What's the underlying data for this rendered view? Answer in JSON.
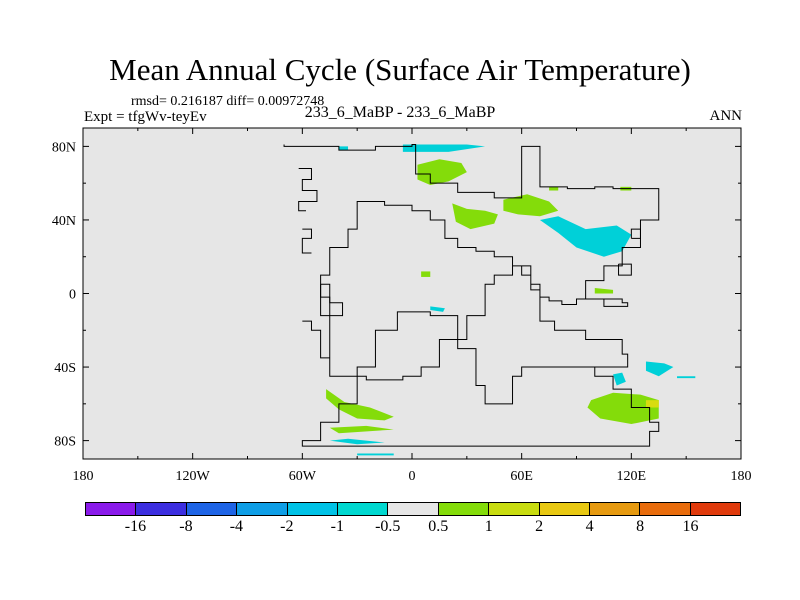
{
  "title": "Mean Annual Cycle (Surface Air Temperature)",
  "stats_line": "rmsd= 0.216187 diff= 0.00972748",
  "expt_line": "Expt = tfgWv-teyEv",
  "center_label": "233_6_MaBP - 233_6_MaBP",
  "season_label": "ANN",
  "colors": {
    "background": "#e6e6e6",
    "outline": "#000000",
    "neg_small": "#00d0d8",
    "pos_small": "#84dc0a",
    "pos_medium": "#d8dc10"
  },
  "chart_data": {
    "type": "heatmap",
    "title": "Mean Annual Cycle (Surface Air Temperature)",
    "xlabel": "",
    "ylabel": "",
    "xlim": [
      -180,
      180
    ],
    "ylim": [
      -90,
      90
    ],
    "x_ticks": [
      {
        "value": -180,
        "label": "180"
      },
      {
        "value": -120,
        "label": "120W"
      },
      {
        "value": -60,
        "label": "60W"
      },
      {
        "value": 0,
        "label": "0"
      },
      {
        "value": 60,
        "label": "60E"
      },
      {
        "value": 120,
        "label": "120E"
      },
      {
        "value": 180,
        "label": "180"
      }
    ],
    "y_ticks": [
      {
        "value": 80,
        "label": "80N"
      },
      {
        "value": 40,
        "label": "40N"
      },
      {
        "value": 0,
        "label": "0"
      },
      {
        "value": -40,
        "label": "40S"
      },
      {
        "value": -80,
        "label": "80S"
      }
    ],
    "colorbar": {
      "colors": [
        "#8a1aea",
        "#3c2ee0",
        "#1e64e6",
        "#0e9ee6",
        "#00c2e6",
        "#00d8d0",
        "#e6e6e6",
        "#84dc0a",
        "#c8dc10",
        "#e8c812",
        "#e69a10",
        "#e86c0c",
        "#e03a0c"
      ],
      "labels": [
        "-16",
        "-8",
        "-4",
        "-2",
        "-1",
        "-0.5",
        "0.5",
        "1",
        "2",
        "4",
        "8",
        "16"
      ]
    },
    "continent_outline": [
      [
        -70,
        81
      ],
      [
        -70,
        80
      ],
      [
        -40,
        80
      ],
      [
        -40,
        78
      ],
      [
        -20,
        78
      ],
      [
        -20,
        80
      ],
      [
        0,
        80
      ],
      [
        0,
        81
      ],
      [
        2,
        81
      ],
      [
        2,
        65
      ],
      [
        10,
        65
      ],
      [
        10,
        60
      ],
      [
        25,
        60
      ],
      [
        25,
        55
      ],
      [
        45,
        55
      ],
      [
        45,
        52
      ],
      [
        60,
        52
      ],
      [
        60,
        80
      ],
      [
        70,
        80
      ],
      [
        70,
        58
      ],
      [
        85,
        58
      ],
      [
        85,
        57
      ],
      [
        100,
        57
      ],
      [
        100,
        58
      ],
      [
        110,
        58
      ],
      [
        110,
        57
      ],
      [
        135,
        57
      ],
      [
        135,
        40
      ],
      [
        125,
        40
      ],
      [
        125,
        25
      ],
      [
        115,
        25
      ],
      [
        115,
        15
      ],
      [
        105,
        15
      ],
      [
        105,
        7
      ],
      [
        95,
        7
      ],
      [
        95,
        -3
      ],
      [
        115,
        -3
      ],
      [
        115,
        -5
      ],
      [
        118,
        -5
      ],
      [
        118,
        -7
      ],
      [
        105,
        -7
      ],
      [
        105,
        -3
      ],
      [
        90,
        -3
      ],
      [
        90,
        -6
      ],
      [
        82,
        -6
      ],
      [
        82,
        -4
      ],
      [
        75,
        -4
      ],
      [
        75,
        -2
      ],
      [
        70,
        -2
      ],
      [
        70,
        2
      ],
      [
        65,
        2
      ],
      [
        65,
        10
      ],
      [
        60,
        10
      ],
      [
        60,
        15
      ],
      [
        55,
        15
      ],
      [
        55,
        20
      ],
      [
        45,
        20
      ],
      [
        45,
        23
      ],
      [
        35,
        23
      ],
      [
        35,
        25
      ],
      [
        25,
        25
      ],
      [
        25,
        30
      ],
      [
        18,
        30
      ],
      [
        18,
        40
      ],
      [
        10,
        40
      ],
      [
        10,
        45
      ],
      [
        0,
        45
      ],
      [
        0,
        48
      ],
      [
        -15,
        48
      ],
      [
        -15,
        50
      ],
      [
        -30,
        50
      ],
      [
        -30,
        35
      ],
      [
        -35,
        35
      ],
      [
        -35,
        25
      ],
      [
        -45,
        25
      ],
      [
        -45,
        10
      ],
      [
        -50,
        10
      ],
      [
        -50,
        -2
      ],
      [
        -45,
        -2
      ],
      [
        -45,
        -45
      ],
      [
        -25,
        -45
      ],
      [
        -25,
        -47
      ],
      [
        -5,
        -47
      ],
      [
        -5,
        -45
      ],
      [
        5,
        -45
      ],
      [
        5,
        -40
      ],
      [
        15,
        -40
      ],
      [
        15,
        -25
      ],
      [
        30,
        -25
      ],
      [
        30,
        -12
      ],
      [
        40,
        -12
      ],
      [
        40,
        5
      ],
      [
        45,
        5
      ],
      [
        45,
        10
      ],
      [
        55,
        10
      ],
      [
        55,
        15
      ],
      [
        65,
        15
      ],
      [
        65,
        5
      ],
      [
        70,
        5
      ],
      [
        70,
        -15
      ],
      [
        78,
        -15
      ],
      [
        78,
        -20
      ],
      [
        95,
        -20
      ],
      [
        95,
        -25
      ],
      [
        115,
        -25
      ],
      [
        115,
        -33
      ],
      [
        118,
        -33
      ],
      [
        118,
        -40
      ],
      [
        60,
        -40
      ],
      [
        60,
        -45
      ],
      [
        55,
        -45
      ],
      [
        55,
        -60
      ],
      [
        40,
        -60
      ],
      [
        40,
        -50
      ],
      [
        35,
        -50
      ],
      [
        35,
        -30
      ],
      [
        25,
        -30
      ],
      [
        25,
        -12
      ],
      [
        10,
        -12
      ],
      [
        10,
        -10
      ],
      [
        -8,
        -10
      ],
      [
        -8,
        -20
      ],
      [
        -20,
        -20
      ],
      [
        -20,
        -40
      ],
      [
        -30,
        -40
      ],
      [
        -30,
        -60
      ],
      [
        -40,
        -60
      ],
      [
        -40,
        -70
      ],
      [
        -50,
        -70
      ],
      [
        -50,
        -80
      ],
      [
        -60,
        -80
      ],
      [
        -60,
        -83
      ],
      [
        130,
        -83
      ],
      [
        130,
        -75
      ],
      [
        135,
        -75
      ],
      [
        135,
        -70
      ],
      [
        130,
        -70
      ],
      [
        130,
        -62
      ],
      [
        120,
        -62
      ],
      [
        120,
        -52
      ],
      [
        110,
        -52
      ],
      [
        110,
        -45
      ],
      [
        100,
        -45
      ],
      [
        100,
        -40
      ],
      [
        118,
        -40
      ]
    ],
    "extra_outlines": [
      [
        [
          -62,
          68
        ],
        [
          -55,
          68
        ],
        [
          -55,
          62
        ],
        [
          -60,
          62
        ],
        [
          -60,
          56
        ],
        [
          -52,
          56
        ],
        [
          -52,
          50
        ],
        [
          -62,
          50
        ],
        [
          -62,
          45
        ],
        [
          -58,
          45
        ]
      ],
      [
        [
          -60,
          35
        ],
        [
          -55,
          35
        ],
        [
          -55,
          30
        ],
        [
          -60,
          30
        ],
        [
          -60,
          22
        ],
        [
          -55,
          22
        ]
      ],
      [
        [
          -60,
          -15
        ],
        [
          -55,
          -15
        ],
        [
          -55,
          -20
        ],
        [
          -50,
          -20
        ],
        [
          -50,
          -35
        ],
        [
          -45,
          -35
        ]
      ],
      [
        [
          -50,
          5
        ],
        [
          -45,
          5
        ],
        [
          -45,
          -5
        ],
        [
          -38,
          -5
        ],
        [
          -38,
          -12
        ],
        [
          -50,
          -12
        ],
        [
          -50,
          5
        ]
      ],
      [
        [
          120,
          30
        ],
        [
          125,
          30
        ],
        [
          125,
          35
        ],
        [
          120,
          35
        ],
        [
          120,
          30
        ]
      ],
      [
        [
          113,
          16
        ],
        [
          120,
          16
        ],
        [
          120,
          10
        ],
        [
          113,
          10
        ],
        [
          113,
          16
        ]
      ]
    ],
    "anomaly_regions": [
      {
        "sign": "positive",
        "bin": "0.5 to 1",
        "points": [
          [
            3,
            70
          ],
          [
            15,
            73
          ],
          [
            27,
            71
          ],
          [
            30,
            66
          ],
          [
            20,
            61
          ],
          [
            10,
            59
          ],
          [
            3,
            62
          ]
        ]
      },
      {
        "sign": "positive",
        "bin": "0.5 to 1",
        "points": [
          [
            22,
            49
          ],
          [
            30,
            46
          ],
          [
            40,
            45
          ],
          [
            47,
            43
          ],
          [
            45,
            38
          ],
          [
            32,
            35
          ],
          [
            24,
            39
          ]
        ]
      },
      {
        "sign": "positive",
        "bin": "0.5 to 1",
        "points": [
          [
            50,
            51
          ],
          [
            63,
            54
          ],
          [
            75,
            50
          ],
          [
            80,
            45
          ],
          [
            70,
            42
          ],
          [
            58,
            43
          ],
          [
            50,
            45
          ]
        ]
      },
      {
        "sign": "positive",
        "bin": "0.5 to 1",
        "points": [
          [
            -47,
            -57
          ],
          [
            -40,
            -63
          ],
          [
            -30,
            -68
          ],
          [
            -15,
            -69
          ],
          [
            -10,
            -67
          ],
          [
            -23,
            -62
          ],
          [
            -37,
            -59
          ],
          [
            -47,
            -52
          ]
        ]
      },
      {
        "sign": "positive",
        "bin": "0.5 to 1",
        "points": [
          [
            98,
            -58
          ],
          [
            110,
            -54
          ],
          [
            125,
            -55
          ],
          [
            135,
            -58
          ],
          [
            135,
            -68
          ],
          [
            120,
            -71
          ],
          [
            103,
            -68
          ],
          [
            96,
            -62
          ]
        ]
      },
      {
        "sign": "positive",
        "bin": "0.5 to 1",
        "points": [
          [
            100,
            3
          ],
          [
            110,
            2
          ],
          [
            110,
            0
          ],
          [
            100,
            0
          ]
        ]
      },
      {
        "sign": "positive",
        "bin": "0.5 to 1",
        "points": [
          [
            5,
            12
          ],
          [
            10,
            12
          ],
          [
            10,
            9
          ],
          [
            5,
            9
          ]
        ]
      },
      {
        "sign": "positive",
        "bin": "0.5 to 1",
        "points": [
          [
            75,
            58
          ],
          [
            80,
            58
          ],
          [
            80,
            56
          ],
          [
            75,
            56
          ]
        ]
      },
      {
        "sign": "positive",
        "bin": "0.5 to 1",
        "points": [
          [
            114,
            58
          ],
          [
            120,
            58
          ],
          [
            120,
            56
          ],
          [
            114,
            56
          ]
        ]
      },
      {
        "sign": "positive",
        "bin": "0.5 to 1",
        "points": [
          [
            -45,
            -73
          ],
          [
            -25,
            -72
          ],
          [
            -10,
            -74
          ],
          [
            -40,
            -76
          ]
        ]
      },
      {
        "sign": "positive",
        "bin": "1 to 2",
        "points": [
          [
            128,
            -58
          ],
          [
            135,
            -58
          ],
          [
            135,
            -62
          ],
          [
            128,
            -62
          ]
        ]
      },
      {
        "sign": "negative",
        "bin": "-0.5 to -1",
        "points": [
          [
            -5,
            81
          ],
          [
            30,
            81
          ],
          [
            40,
            80
          ],
          [
            20,
            77
          ],
          [
            -5,
            77
          ]
        ]
      },
      {
        "sign": "negative",
        "bin": "-0.5 to -1",
        "points": [
          [
            70,
            40
          ],
          [
            80,
            33
          ],
          [
            90,
            25
          ],
          [
            105,
            20
          ],
          [
            115,
            23
          ],
          [
            120,
            32
          ],
          [
            112,
            37
          ],
          [
            95,
            35
          ],
          [
            80,
            42
          ]
        ]
      },
      {
        "sign": "negative",
        "bin": "-0.5 to -1",
        "points": [
          [
            128,
            -37
          ],
          [
            138,
            -38
          ],
          [
            143,
            -40
          ],
          [
            135,
            -45
          ],
          [
            128,
            -42
          ]
        ]
      },
      {
        "sign": "negative",
        "bin": "-0.5 to -1",
        "points": [
          [
            110,
            -44
          ],
          [
            115,
            -43
          ],
          [
            117,
            -48
          ],
          [
            112,
            -50
          ]
        ]
      },
      {
        "sign": "negative",
        "bin": "-0.5 to -1",
        "points": [
          [
            -45,
            -80
          ],
          [
            -30,
            -82
          ],
          [
            -15,
            -81
          ],
          [
            -35,
            -79
          ]
        ]
      },
      {
        "sign": "negative",
        "bin": "-0.5 to -1",
        "points": [
          [
            10,
            -7
          ],
          [
            18,
            -8
          ],
          [
            17,
            -10
          ],
          [
            10,
            -9
          ]
        ]
      },
      {
        "sign": "negative",
        "bin": "-0.5 to -1",
        "points": [
          [
            -40,
            80
          ],
          [
            -35,
            80
          ],
          [
            -35,
            78
          ],
          [
            -40,
            78
          ]
        ]
      },
      {
        "sign": "negative",
        "bin": "-0.5 to -1",
        "points": [
          [
            145,
            -45
          ],
          [
            155,
            -45
          ],
          [
            155,
            -46
          ],
          [
            145,
            -46
          ]
        ]
      },
      {
        "sign": "negative",
        "bin": "-0.5 to -1",
        "points": [
          [
            -30,
            -87
          ],
          [
            -10,
            -87
          ],
          [
            -10,
            -88
          ],
          [
            -30,
            -88
          ]
        ]
      }
    ]
  }
}
